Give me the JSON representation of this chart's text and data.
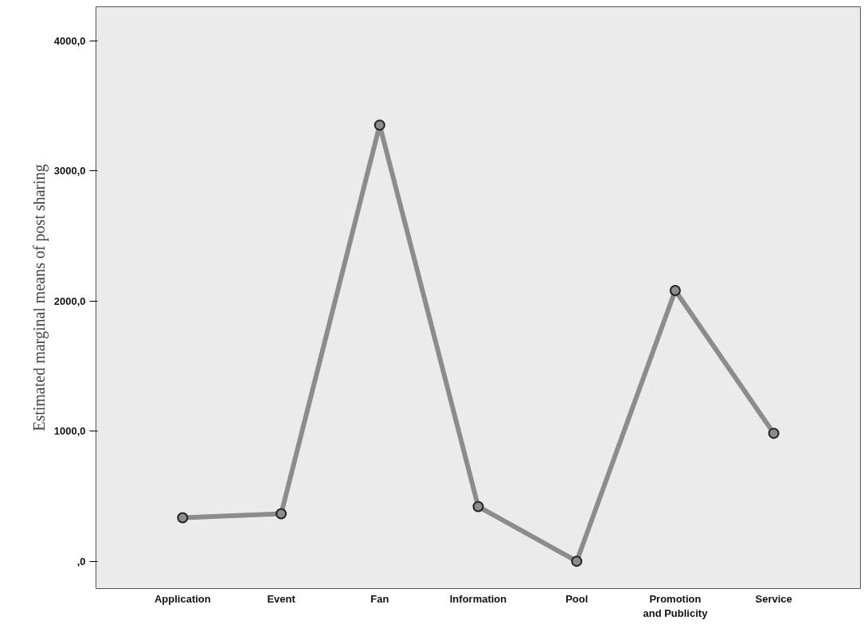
{
  "chart_data": {
    "type": "line",
    "ylabel": "Estimated marginal means of post sharing",
    "categories": [
      "Application",
      "Event",
      "Fan",
      "Information",
      "Pool",
      "Promotion and Publicity",
      "Service"
    ],
    "series": [
      {
        "color": "#8c8c8c",
        "values": [
          334,
          365,
          3351,
          420,
          0,
          2080,
          983
        ]
      }
    ],
    "ylim": [
      -210,
      4260
    ],
    "yticks": [
      {
        "value": 0,
        "label": ",0"
      },
      {
        "value": 1000,
        "label": "1000,0"
      },
      {
        "value": 2000,
        "label": "2000,0"
      },
      {
        "value": 3000,
        "label": "3000,0"
      },
      {
        "value": 4000,
        "label": "4000,0"
      }
    ],
    "marker": "circle",
    "grid": false
  }
}
